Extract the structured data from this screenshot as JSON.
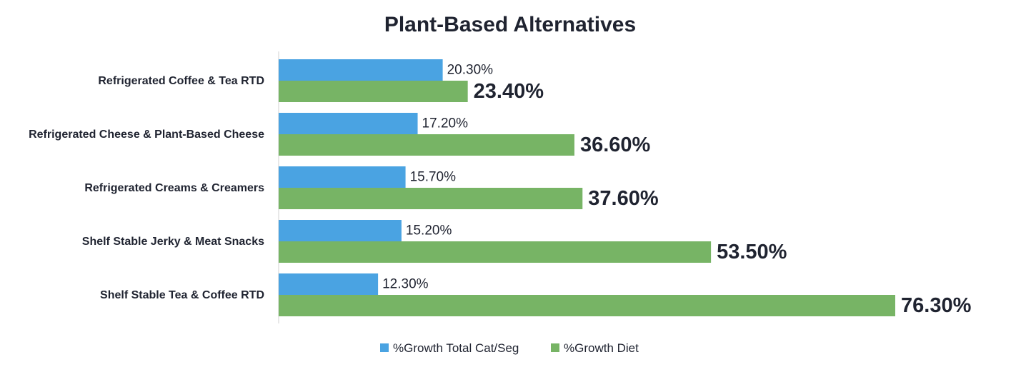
{
  "chart_data": {
    "type": "bar",
    "orientation": "horizontal",
    "title": "Plant-Based Alternatives",
    "categories": [
      "Refrigerated Coffee & Tea RTD",
      "Refrigerated Cheese & Plant-Based Cheese",
      "Refrigerated Creams & Creamers",
      "Shelf Stable Jerky & Meat Snacks",
      "Shelf Stable Tea & Coffee RTD"
    ],
    "series": [
      {
        "name": "%Growth Total Cat/Seg",
        "color": "#4aa3e2",
        "values": [
          20.3,
          17.2,
          15.7,
          15.2,
          12.3
        ],
        "labels": [
          "20.30%",
          "17.20%",
          "15.70%",
          "15.20%",
          "12.30%"
        ]
      },
      {
        "name": "%Growth Diet",
        "color": "#77b465",
        "values": [
          23.4,
          36.6,
          37.6,
          53.5,
          76.3
        ],
        "labels": [
          "23.40%",
          "36.60%",
          "37.60%",
          "53.50%",
          "76.30%"
        ]
      }
    ],
    "xlim": [
      0,
      76.3
    ],
    "grid": false,
    "legend_position": "bottom"
  }
}
